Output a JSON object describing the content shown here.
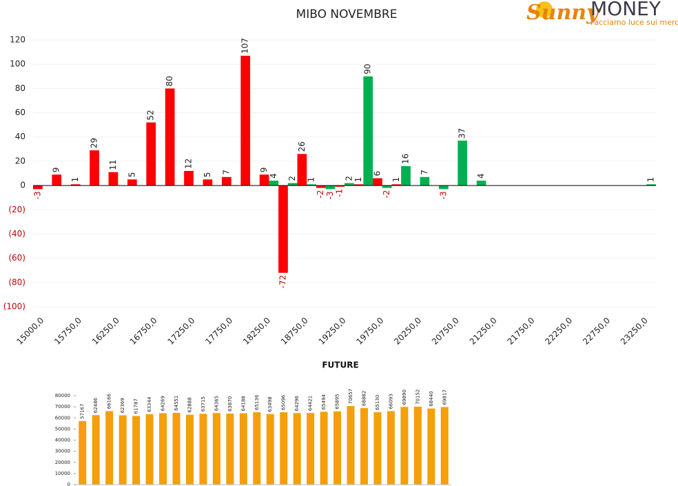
{
  "logo": {
    "brand": "Sunny",
    "name": "MONEY",
    "tagline": "Facciamo luce sui mercati"
  },
  "chart_data": [
    {
      "type": "bar",
      "title": "MIBO NOVEMBRE",
      "categories": [
        "15000,0",
        null,
        "15750,0",
        null,
        "16250,0",
        null,
        "16750,0",
        null,
        "17250,0",
        null,
        "17750,0",
        null,
        "18250,0",
        null,
        "18750,0",
        null,
        "19250,0",
        null,
        "19750,0",
        null,
        "20250,0",
        null,
        "20750,0",
        null,
        "21250,0",
        null,
        "21750,0",
        null,
        "22250,0",
        null,
        "22750,0",
        null,
        "23250,0"
      ],
      "series": [
        {
          "color": "#ff0000",
          "values": [
            -3,
            9,
            1,
            29,
            11,
            5,
            52,
            80,
            12,
            5,
            7,
            107,
            9,
            -72,
            26,
            -2,
            -1,
            1,
            6,
            1,
            null,
            null,
            null,
            null,
            null,
            null,
            null,
            null,
            null,
            null,
            null,
            null,
            null
          ]
        },
        {
          "color": "#00b050",
          "values": [
            null,
            null,
            null,
            null,
            null,
            null,
            null,
            null,
            null,
            null,
            null,
            null,
            4,
            2,
            1,
            -3,
            2,
            90,
            -2,
            16,
            7,
            -3,
            37,
            4,
            null,
            null,
            null,
            null,
            null,
            null,
            null,
            null,
            1
          ]
        }
      ],
      "ylim": [
        -100,
        120
      ],
      "yticks": [
        {
          "value": -100,
          "label": "(100)"
        },
        {
          "value": -80,
          "label": "(80)"
        },
        {
          "value": -60,
          "label": "(60)"
        },
        {
          "value": -40,
          "label": "(40)"
        },
        {
          "value": -20,
          "label": "(20)"
        },
        0,
        20,
        40,
        60,
        80,
        100,
        120
      ],
      "grid": true,
      "negative_color": "#c00000"
    },
    {
      "type": "bar",
      "title": "FUTURE",
      "color": "#f59f0c",
      "values": [
        57167,
        62486,
        66166,
        62369,
        61787,
        63344,
        64269,
        64551,
        62888,
        63715,
        64365,
        63870,
        64188,
        65136,
        63498,
        65096,
        64296,
        64421,
        65494,
        65895,
        70657,
        68882,
        65130,
        66093,
        69890,
        70152,
        68440,
        69817
      ],
      "ylim": [
        0,
        80000
      ],
      "yticks": [
        0,
        10000,
        20000,
        30000,
        40000,
        50000,
        60000,
        70000,
        80000
      ]
    }
  ]
}
